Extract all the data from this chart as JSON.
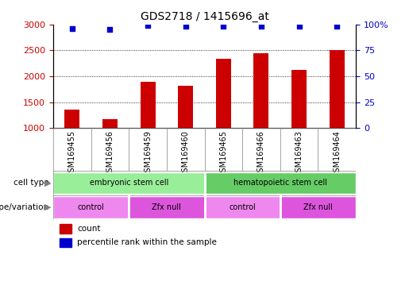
{
  "title": "GDS2718 / 1415696_at",
  "samples": [
    "GSM169455",
    "GSM169456",
    "GSM169459",
    "GSM169460",
    "GSM169465",
    "GSM169466",
    "GSM169463",
    "GSM169464"
  ],
  "counts": [
    1350,
    1170,
    1900,
    1820,
    2330,
    2450,
    2130,
    2510
  ],
  "percentile_ranks": [
    96,
    95,
    99,
    98,
    98,
    98,
    98,
    98
  ],
  "bar_color": "#cc0000",
  "dot_color": "#0000cc",
  "ylim_left": [
    1000,
    3000
  ],
  "ylim_right": [
    0,
    100
  ],
  "yticks_left": [
    1000,
    1500,
    2000,
    2500,
    3000
  ],
  "yticks_right": [
    0,
    25,
    50,
    75,
    100
  ],
  "grid_values": [
    1500,
    2000,
    2500
  ],
  "cell_types": [
    {
      "label": "embryonic stem cell",
      "start": 0,
      "end": 4,
      "color": "#99ee99"
    },
    {
      "label": "hematopoietic stem cell",
      "start": 4,
      "end": 8,
      "color": "#66cc66"
    }
  ],
  "genotypes": [
    {
      "label": "control",
      "start": 0,
      "end": 2,
      "color": "#ee88ee"
    },
    {
      "label": "Zfx null",
      "start": 2,
      "end": 4,
      "color": "#dd55dd"
    },
    {
      "label": "control",
      "start": 4,
      "end": 6,
      "color": "#ee88ee"
    },
    {
      "label": "Zfx null",
      "start": 6,
      "end": 8,
      "color": "#dd55dd"
    }
  ],
  "legend_count_color": "#cc0000",
  "legend_dot_color": "#0000cc",
  "tick_label_color_left": "#cc0000",
  "tick_label_color_right": "#0000cc",
  "background_color": "#ffffff",
  "plot_bg_color": "#ffffff"
}
